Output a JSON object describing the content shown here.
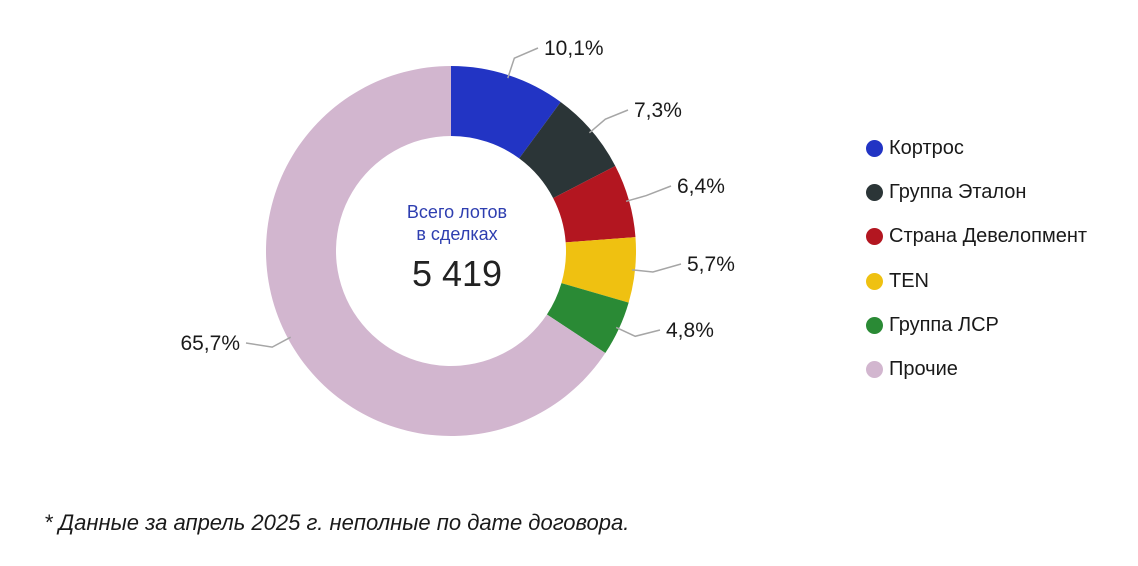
{
  "chart_data": {
    "type": "pie",
    "variant": "donut",
    "legend_position": "right",
    "center": {
      "caption_line1": "Всего лотов",
      "caption_line2": "в сделках",
      "value": "5 419"
    },
    "slices": [
      {
        "label": "Кортрос",
        "value": 10.1,
        "display": "10,1%",
        "color": "#2234c4"
      },
      {
        "label": "Группа Эталон",
        "value": 7.3,
        "display": "7,3%",
        "color": "#2b3537"
      },
      {
        "label": "Страна Девелопмент",
        "value": 6.4,
        "display": "6,4%",
        "color": "#b31620"
      },
      {
        "label": "TEN",
        "value": 5.7,
        "display": "5,7%",
        "color": "#efc111"
      },
      {
        "label": "Группа ЛСР",
        "value": 4.8,
        "display": "4,8%",
        "color": "#2a8a35"
      },
      {
        "label": "Прочие",
        "value": 65.7,
        "display": "65,7%",
        "color": "#d2b6cf"
      }
    ]
  },
  "footnote": "* Данные за апрель 2025 г. неполные по дате договора."
}
